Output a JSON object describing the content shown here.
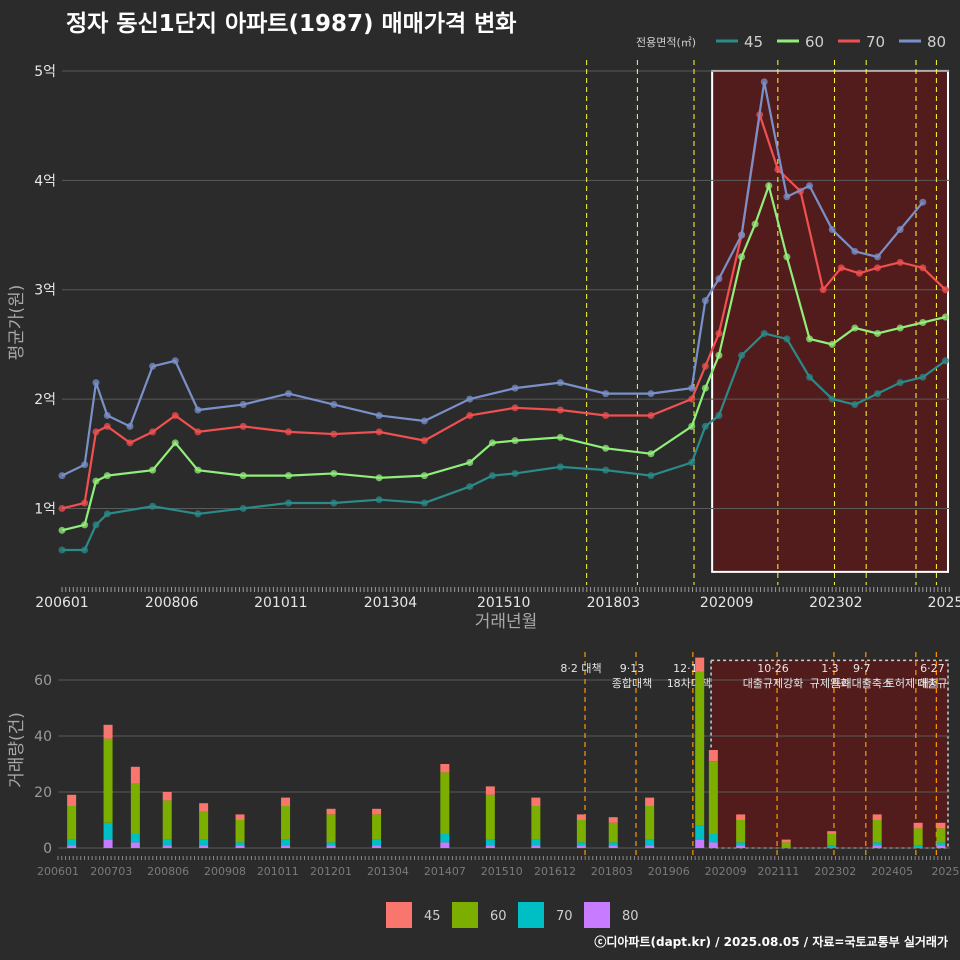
{
  "title": "정자 동신1단지 아파트(1987) 매매가격 변화",
  "footer": "ⓒ디아파트(dapt.kr) / 2025.08.05 / 자료=국토교통부 실거래가",
  "colors": {
    "bg": "#2b2b2b",
    "grid": "#5a5a5a",
    "vline": "#ffff33",
    "vline_bottom": "#ff9900",
    "highlight_fill": "#5a1a1a",
    "highlight_stroke": "#ffffff"
  },
  "chart_data": [
    {
      "type": "line",
      "ylabel": "평균가(원)",
      "xlabel": "거래년월",
      "legend_title": "전용면적(㎡)",
      "legend_position": "top-right",
      "grid": true,
      "ylim": [
        0.3,
        5.1
      ],
      "yticks": [
        {
          "v": 1,
          "label": "1억"
        },
        {
          "v": 2,
          "label": "2억"
        },
        {
          "v": 3,
          "label": "3억"
        },
        {
          "v": 4,
          "label": "4억"
        },
        {
          "v": 5,
          "label": "5억"
        }
      ],
      "xlim": [
        2006.0,
        2025.6
      ],
      "xticks": [
        {
          "v": 2006.0,
          "label": "200601"
        },
        {
          "v": 2008.42,
          "label": "200806"
        },
        {
          "v": 2010.83,
          "label": "201011"
        },
        {
          "v": 2013.25,
          "label": "201304"
        },
        {
          "v": 2015.75,
          "label": "201510"
        },
        {
          "v": 2018.17,
          "label": "201803"
        },
        {
          "v": 2020.67,
          "label": "202009"
        },
        {
          "v": 2023.08,
          "label": "202302"
        },
        {
          "v": 2025.5,
          "label": "2025"
        }
      ],
      "vlines": [
        2017.58,
        2018.7,
        2019.95,
        2021.8,
        2023.05,
        2023.75,
        2024.85,
        2025.3
      ],
      "highlight": [
        2020.35,
        2025.6
      ],
      "series": [
        {
          "name": "45",
          "color": "#2b8a8a",
          "x": [
            2006.0,
            2006.5,
            2006.75,
            2007.0,
            2008.0,
            2009.0,
            2010.0,
            2011.0,
            2012.0,
            2013.0,
            2014.0,
            2015.0,
            2015.5,
            2016.0,
            2017.0,
            2018.0,
            2019.0,
            2019.9,
            2020.2,
            2020.5,
            2021.0,
            2021.5,
            2022.0,
            2022.5,
            2023.0,
            2023.5,
            2024.0,
            2024.5,
            2025.0,
            2025.5
          ],
          "y": [
            0.62,
            0.62,
            0.85,
            0.95,
            1.02,
            0.95,
            1.0,
            1.05,
            1.05,
            1.08,
            1.05,
            1.2,
            1.3,
            1.32,
            1.38,
            1.35,
            1.3,
            1.42,
            1.75,
            1.85,
            2.4,
            2.6,
            2.55,
            2.2,
            2.0,
            1.95,
            2.05,
            2.15,
            2.2,
            2.35
          ]
        },
        {
          "name": "60",
          "color": "#90ee7a",
          "x": [
            2006.0,
            2006.5,
            2006.75,
            2007.0,
            2008.0,
            2008.5,
            2009.0,
            2010.0,
            2011.0,
            2012.0,
            2013.0,
            2014.0,
            2015.0,
            2015.5,
            2016.0,
            2017.0,
            2018.0,
            2019.0,
            2019.9,
            2020.2,
            2020.5,
            2021.0,
            2021.3,
            2021.6,
            2022.0,
            2022.5,
            2023.0,
            2023.5,
            2024.0,
            2024.5,
            2025.0,
            2025.5
          ],
          "y": [
            0.8,
            0.85,
            1.25,
            1.3,
            1.35,
            1.6,
            1.35,
            1.3,
            1.3,
            1.32,
            1.28,
            1.3,
            1.42,
            1.6,
            1.62,
            1.65,
            1.55,
            1.5,
            1.75,
            2.1,
            2.4,
            3.3,
            3.6,
            3.95,
            3.3,
            2.55,
            2.5,
            2.65,
            2.6,
            2.65,
            2.7,
            2.75
          ]
        },
        {
          "name": "70",
          "color": "#f05050",
          "x": [
            2006.0,
            2006.5,
            2006.75,
            2007.0,
            2007.5,
            2008.0,
            2008.5,
            2009.0,
            2010.0,
            2011.0,
            2012.0,
            2013.0,
            2014.0,
            2015.0,
            2016.0,
            2017.0,
            2018.0,
            2019.0,
            2019.9,
            2020.2,
            2020.5,
            2021.0,
            2021.4,
            2021.8,
            2022.3,
            2022.8,
            2023.2,
            2023.6,
            2024.0,
            2024.5,
            2025.0,
            2025.5
          ],
          "y": [
            1.0,
            1.05,
            1.7,
            1.75,
            1.6,
            1.7,
            1.85,
            1.7,
            1.75,
            1.7,
            1.68,
            1.7,
            1.62,
            1.85,
            1.92,
            1.9,
            1.85,
            1.85,
            2.0,
            2.3,
            2.6,
            3.5,
            4.6,
            4.1,
            3.9,
            3.0,
            3.2,
            3.15,
            3.2,
            3.25,
            3.2,
            3.0
          ]
        },
        {
          "name": "80",
          "color": "#7a90c8",
          "x": [
            2006.0,
            2006.5,
            2006.75,
            2007.0,
            2007.5,
            2008.0,
            2008.5,
            2009.0,
            2010.0,
            2011.0,
            2012.0,
            2013.0,
            2014.0,
            2015.0,
            2016.0,
            2017.0,
            2018.0,
            2019.0,
            2019.9,
            2020.2,
            2020.5,
            2021.0,
            2021.5,
            2022.0,
            2022.5,
            2023.0,
            2023.5,
            2024.0,
            2024.5,
            2025.0
          ],
          "y": [
            1.3,
            1.4,
            2.15,
            1.85,
            1.75,
            2.3,
            2.35,
            1.9,
            1.95,
            2.05,
            1.95,
            1.85,
            1.8,
            2.0,
            2.1,
            2.15,
            2.05,
            2.05,
            2.1,
            2.9,
            3.1,
            3.5,
            4.9,
            3.85,
            3.95,
            3.55,
            3.35,
            3.3,
            3.55,
            3.8
          ]
        }
      ]
    },
    {
      "type": "bar",
      "ylabel": "거래량(건)",
      "grid": true,
      "ylim": [
        0,
        70
      ],
      "yticks": [
        {
          "v": 0,
          "label": "0"
        },
        {
          "v": 20,
          "label": "20"
        },
        {
          "v": 40,
          "label": "40"
        },
        {
          "v": 60,
          "label": "60"
        }
      ],
      "xlim": [
        2006.0,
        2025.6
      ],
      "xticks": [
        {
          "v": 2006.0,
          "label": "200601"
        },
        {
          "v": 2007.17,
          "label": "200703"
        },
        {
          "v": 2008.42,
          "label": "200806"
        },
        {
          "v": 2009.67,
          "label": "200908"
        },
        {
          "v": 2010.83,
          "label": "201011"
        },
        {
          "v": 2012.0,
          "label": "201201"
        },
        {
          "v": 2013.25,
          "label": "201304"
        },
        {
          "v": 2014.5,
          "label": "201407"
        },
        {
          "v": 2015.75,
          "label": "201510"
        },
        {
          "v": 2016.92,
          "label": "201612"
        },
        {
          "v": 2018.17,
          "label": "201803"
        },
        {
          "v": 2019.42,
          "label": "201906"
        },
        {
          "v": 2020.67,
          "label": "202009"
        },
        {
          "v": 2021.83,
          "label": "202111"
        },
        {
          "v": 2023.08,
          "label": "202302"
        },
        {
          "v": 2024.33,
          "label": "202405"
        },
        {
          "v": 2025.5,
          "label": "2025"
        }
      ],
      "highlight": [
        2020.35,
        2025.6
      ],
      "annotations": [
        {
          "x": 2017.58,
          "lines": [
            "8·2 대책"
          ]
        },
        {
          "x": 2018.7,
          "lines": [
            "9·13",
            "종합대책"
          ]
        },
        {
          "x": 2019.95,
          "lines": [
            "12·16",
            "18차대책"
          ]
        },
        {
          "x": 2021.8,
          "lines": [
            "10·26",
            "대출규제강화"
          ]
        },
        {
          "x": 2023.05,
          "lines": [
            "1·3",
            "규제완화"
          ]
        },
        {
          "x": 2023.75,
          "lines": [
            "9·7",
            "특례대출축소"
          ]
        },
        {
          "x": 2024.85,
          "lines": [
            "",
            "토허제 해지"
          ]
        },
        {
          "x": 2025.3,
          "lines": [
            "6·27",
            "대출규"
          ]
        }
      ],
      "series": [
        {
          "name": "45",
          "color": "#f8766d",
          "x": [
            2006.3,
            2007.1,
            2007.7,
            2008.4,
            2009.2,
            2010.0,
            2011.0,
            2012.0,
            2013.0,
            2014.5,
            2015.5,
            2016.5,
            2017.5,
            2018.2,
            2019.0,
            2020.1,
            2020.4,
            2021.0,
            2022.0,
            2023.0,
            2024.0,
            2024.9,
            2025.4
          ],
          "values": [
            4,
            5,
            6,
            3,
            3,
            2,
            3,
            2,
            2,
            3,
            3,
            3,
            2,
            2,
            3,
            5,
            4,
            2,
            1,
            1,
            2,
            2,
            2
          ]
        },
        {
          "name": "60",
          "color": "#7cae00",
          "x": [
            2006.3,
            2007.1,
            2007.7,
            2008.4,
            2009.2,
            2010.0,
            2011.0,
            2012.0,
            2013.0,
            2014.5,
            2015.5,
            2016.5,
            2017.5,
            2018.2,
            2019.0,
            2020.1,
            2020.4,
            2021.0,
            2022.0,
            2023.0,
            2024.0,
            2024.9,
            2025.4
          ],
          "values": [
            12,
            30,
            18,
            14,
            10,
            8,
            12,
            10,
            9,
            22,
            16,
            12,
            8,
            7,
            12,
            55,
            26,
            8,
            2,
            4,
            8,
            6,
            5
          ]
        },
        {
          "name": "70",
          "color": "#00bfc4",
          "x": [
            2006.3,
            2007.1,
            2007.7,
            2008.4,
            2009.2,
            2010.0,
            2011.0,
            2012.0,
            2013.0,
            2014.5,
            2015.5,
            2016.5,
            2017.5,
            2018.2,
            2019.0,
            2020.1,
            2020.4,
            2021.0,
            2022.0,
            2023.0,
            2024.0,
            2024.9,
            2025.4
          ],
          "values": [
            2,
            6,
            3,
            2,
            2,
            1,
            2,
            1,
            2,
            3,
            2,
            2,
            1,
            1,
            2,
            5,
            3,
            1,
            0,
            1,
            1,
            1,
            1
          ]
        },
        {
          "name": "80",
          "color": "#c77cff",
          "x": [
            2006.3,
            2007.1,
            2007.7,
            2008.4,
            2009.2,
            2010.0,
            2011.0,
            2012.0,
            2013.0,
            2014.5,
            2015.5,
            2016.5,
            2017.5,
            2018.2,
            2019.0,
            2020.1,
            2020.4,
            2021.0,
            2022.0,
            2023.0,
            2024.0,
            2024.9,
            2025.4
          ],
          "values": [
            1,
            3,
            2,
            1,
            1,
            1,
            1,
            1,
            1,
            2,
            1,
            1,
            1,
            1,
            1,
            3,
            2,
            1,
            0,
            0,
            1,
            0,
            1
          ]
        }
      ]
    }
  ]
}
